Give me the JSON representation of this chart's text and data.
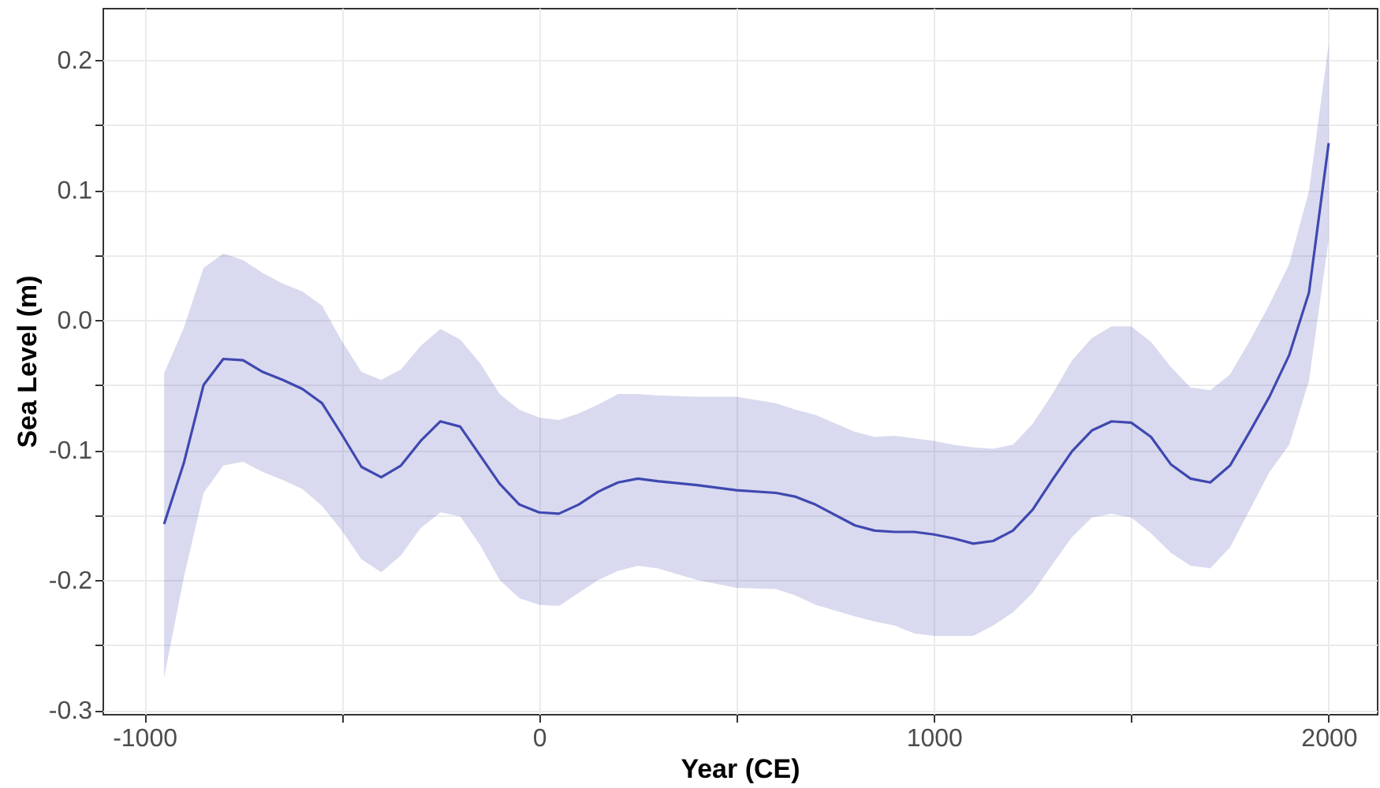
{
  "chart_data": {
    "type": "line",
    "xlabel": "Year (CE)",
    "ylabel": "Sea Level (m)",
    "x": [
      -950,
      -900,
      -850,
      -800,
      -750,
      -700,
      -650,
      -600,
      -550,
      -500,
      -450,
      -400,
      -350,
      -300,
      -250,
      -200,
      -150,
      -100,
      -50,
      0,
      50,
      100,
      150,
      200,
      250,
      300,
      400,
      500,
      600,
      650,
      700,
      800,
      850,
      900,
      950,
      1000,
      1050,
      1100,
      1150,
      1200,
      1250,
      1300,
      1350,
      1400,
      1450,
      1500,
      1550,
      1600,
      1650,
      1700,
      1750,
      1800,
      1850,
      1900,
      1950,
      2000
    ],
    "series": [
      {
        "color": "#3f48b0",
        "values": [
          -0.157,
          -0.11,
          -0.05,
          -0.03,
          -0.031,
          -0.04,
          -0.046,
          -0.053,
          -0.064,
          -0.088,
          -0.113,
          -0.121,
          -0.112,
          -0.093,
          -0.078,
          -0.082,
          -0.104,
          -0.126,
          -0.142,
          -0.148,
          -0.149,
          -0.142,
          -0.132,
          -0.125,
          -0.122,
          -0.124,
          -0.127,
          -0.131,
          -0.133,
          -0.136,
          -0.142,
          -0.158,
          -0.162,
          -0.163,
          -0.163,
          -0.165,
          -0.168,
          -0.172,
          -0.17,
          -0.162,
          -0.146,
          -0.123,
          -0.101,
          -0.085,
          -0.078,
          -0.079,
          -0.09,
          -0.111,
          -0.122,
          -0.125,
          -0.112,
          -0.086,
          -0.059,
          -0.027,
          0.021,
          0.136
        ],
        "upper": [
          -0.041,
          -0.006,
          0.04,
          0.051,
          0.046,
          0.036,
          0.028,
          0.022,
          0.011,
          -0.016,
          -0.04,
          -0.046,
          -0.038,
          -0.02,
          -0.007,
          -0.015,
          -0.033,
          -0.057,
          -0.069,
          -0.075,
          -0.077,
          -0.072,
          -0.065,
          -0.057,
          -0.057,
          -0.058,
          -0.059,
          -0.059,
          -0.064,
          -0.069,
          -0.073,
          -0.086,
          -0.09,
          -0.089,
          -0.091,
          -0.093,
          -0.096,
          -0.098,
          -0.099,
          -0.096,
          -0.08,
          -0.057,
          -0.031,
          -0.014,
          -0.005,
          -0.005,
          -0.017,
          -0.036,
          -0.052,
          -0.054,
          -0.042,
          -0.016,
          0.012,
          0.043,
          0.099,
          0.212
        ],
        "lower": [
          -0.275,
          -0.198,
          -0.133,
          -0.112,
          -0.109,
          -0.117,
          -0.123,
          -0.13,
          -0.143,
          -0.162,
          -0.184,
          -0.194,
          -0.181,
          -0.16,
          -0.148,
          -0.151,
          -0.173,
          -0.2,
          -0.214,
          -0.219,
          -0.22,
          -0.21,
          -0.2,
          -0.193,
          -0.189,
          -0.191,
          -0.2,
          -0.206,
          -0.207,
          -0.212,
          -0.219,
          -0.228,
          -0.232,
          -0.235,
          -0.241,
          -0.243,
          -0.243,
          -0.243,
          -0.235,
          -0.225,
          -0.21,
          -0.188,
          -0.167,
          -0.152,
          -0.149,
          -0.152,
          -0.164,
          -0.179,
          -0.189,
          -0.191,
          -0.175,
          -0.146,
          -0.117,
          -0.096,
          -0.047,
          0.062
        ]
      }
    ],
    "xlim": [
      -1106,
      2122
    ],
    "ylim": [
      -0.303,
      0.24
    ],
    "xticks": [
      -1000,
      {
        "value": -500,
        "label": null
      },
      {
        "value": 0,
        "label": "0"
      },
      {
        "value": 500,
        "label": null
      },
      1000,
      {
        "value": 1500,
        "label": null
      },
      2000
    ],
    "yticks": [
      -0.3,
      {
        "value": -0.25,
        "label": null
      },
      -0.2,
      {
        "value": -0.15,
        "label": null
      },
      -0.1,
      {
        "value": -0.05,
        "label": null
      },
      {
        "value": 0,
        "label": "0.0"
      },
      {
        "value": 0.05,
        "label": null
      },
      0.1,
      {
        "value": 0.15,
        "label": null
      },
      0.2
    ],
    "grid": true,
    "marker": "none",
    "line_style": "solid"
  }
}
